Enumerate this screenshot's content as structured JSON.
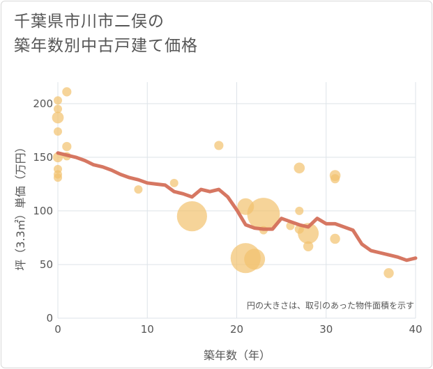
{
  "title_line1": "千葉県市川市二俣の",
  "title_line2": "築年数別中古戸建て価格",
  "chart_data": {
    "type": "scatter",
    "title": "千葉県市川市二俣の築年数別中古戸建て価格",
    "xlabel": "築年数（年）",
    "ylabel": "坪（3.3㎡）単価（万円）",
    "xlim": [
      0,
      40
    ],
    "ylim": [
      0,
      220
    ],
    "xticks": [
      0,
      10,
      20,
      30,
      40
    ],
    "yticks": [
      0,
      50,
      100,
      150,
      200
    ],
    "grid": true,
    "annotation": "円の大きさは、取引のあった物件面積を示す",
    "colors": {
      "bubble": "#f2c26e",
      "trend": "#d4705a"
    },
    "points": [
      {
        "x": 0,
        "y": 203,
        "size": 1
      },
      {
        "x": 0,
        "y": 195,
        "size": 1
      },
      {
        "x": 0,
        "y": 187,
        "size": 1.4
      },
      {
        "x": 0,
        "y": 174,
        "size": 1
      },
      {
        "x": 0,
        "y": 150,
        "size": 1.2
      },
      {
        "x": 0,
        "y": 139,
        "size": 1
      },
      {
        "x": 0,
        "y": 134,
        "size": 1
      },
      {
        "x": 0,
        "y": 131,
        "size": 1
      },
      {
        "x": 1,
        "y": 211,
        "size": 1.1
      },
      {
        "x": 1,
        "y": 160,
        "size": 1.1
      },
      {
        "x": 1,
        "y": 151,
        "size": 1
      },
      {
        "x": 9,
        "y": 120,
        "size": 1
      },
      {
        "x": 13,
        "y": 126,
        "size": 1
      },
      {
        "x": 15,
        "y": 95,
        "size": 3.6
      },
      {
        "x": 18,
        "y": 161,
        "size": 1.1
      },
      {
        "x": 21,
        "y": 104,
        "size": 2
      },
      {
        "x": 21,
        "y": 56,
        "size": 3.6
      },
      {
        "x": 22,
        "y": 55,
        "size": 2.5
      },
      {
        "x": 23,
        "y": 97,
        "size": 3.9
      },
      {
        "x": 23,
        "y": 82,
        "size": 1
      },
      {
        "x": 26,
        "y": 86,
        "size": 1
      },
      {
        "x": 27,
        "y": 140,
        "size": 1.3
      },
      {
        "x": 27,
        "y": 100,
        "size": 1
      },
      {
        "x": 27,
        "y": 83,
        "size": 1.1
      },
      {
        "x": 28,
        "y": 79,
        "size": 2.5
      },
      {
        "x": 28,
        "y": 67,
        "size": 1.2
      },
      {
        "x": 31,
        "y": 133,
        "size": 1.3
      },
      {
        "x": 31,
        "y": 130,
        "size": 1.1
      },
      {
        "x": 31,
        "y": 74,
        "size": 1.2
      },
      {
        "x": 37,
        "y": 42,
        "size": 1.2
      }
    ],
    "trend": {
      "x": [
        0,
        1,
        2,
        3,
        4,
        5,
        6,
        7,
        8,
        9,
        10,
        11,
        12,
        13,
        14,
        15,
        16,
        17,
        18,
        19,
        20,
        21,
        22,
        23,
        24,
        25,
        26,
        27,
        28,
        29,
        30,
        31,
        32,
        33,
        34,
        35,
        36,
        37,
        38,
        39,
        40
      ],
      "y": [
        154,
        152,
        150,
        147,
        143,
        141,
        138,
        134,
        131,
        129,
        126,
        125,
        124,
        118,
        116,
        113,
        120,
        118,
        120,
        113,
        101,
        87,
        84,
        83,
        83,
        93,
        90,
        87,
        85,
        93,
        88,
        88,
        85,
        82,
        69,
        63,
        61,
        59,
        57,
        54,
        56
      ]
    }
  }
}
